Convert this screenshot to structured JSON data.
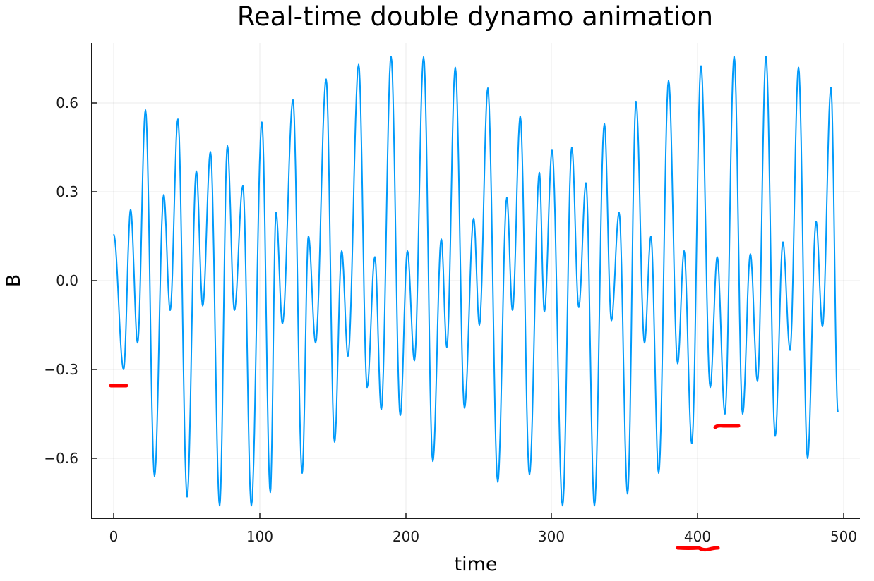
{
  "chart_data": {
    "type": "line",
    "title": "Real-time double dynamo animation",
    "xlabel": "time",
    "ylabel": "B",
    "xlim": [
      -15,
      510
    ],
    "ylim": [
      -0.8,
      0.8
    ],
    "xticks": [
      0,
      100,
      200,
      300,
      400,
      500
    ],
    "xtick_labels": [
      "0",
      "100",
      "200",
      "300",
      "400",
      "500"
    ],
    "yticks": [
      0.6,
      0.3,
      0.0,
      -0.3,
      -0.6
    ],
    "ytick_labels": [
      "0.6",
      "0.3",
      "0.0",
      "−0.3",
      "−0.6"
    ],
    "grid": true,
    "legend": "none",
    "series": [
      {
        "name": "B",
        "color": "#009AFA",
        "note": "local extrema (time, B) of an oscillating signal; curve interpolated between them",
        "extrema": [
          [
            0,
            0.157
          ],
          [
            6.8,
            -0.3
          ],
          [
            11.6,
            0.24
          ],
          [
            16.4,
            -0.21
          ],
          [
            21.8,
            0.576
          ],
          [
            28.0,
            -0.66
          ],
          [
            34.3,
            0.29
          ],
          [
            38.7,
            -0.1
          ],
          [
            44.0,
            0.545
          ],
          [
            50.3,
            -0.73
          ],
          [
            56.6,
            0.37
          ],
          [
            61.0,
            -0.085
          ],
          [
            66.3,
            0.435
          ],
          [
            72.6,
            -0.76
          ],
          [
            77.9,
            0.455
          ],
          [
            82.7,
            -0.1
          ],
          [
            88.5,
            0.32
          ],
          [
            94.3,
            -0.76
          ],
          [
            101.5,
            0.535
          ],
          [
            107.3,
            -0.715
          ],
          [
            111.2,
            0.23
          ],
          [
            115.6,
            -0.145
          ],
          [
            122.8,
            0.61
          ],
          [
            129.1,
            -0.65
          ],
          [
            133.4,
            0.15
          ],
          [
            138.3,
            -0.21
          ],
          [
            145.5,
            0.68
          ],
          [
            151.3,
            -0.545
          ],
          [
            156.2,
            0.1
          ],
          [
            160.5,
            -0.255
          ],
          [
            167.8,
            0.73
          ],
          [
            173.6,
            -0.36
          ],
          [
            178.9,
            0.08
          ],
          [
            183.3,
            -0.435
          ],
          [
            190.0,
            0.757
          ],
          [
            196.3,
            -0.455
          ],
          [
            201.2,
            0.1
          ],
          [
            206.0,
            -0.27
          ],
          [
            212.3,
            0.755
          ],
          [
            218.6,
            -0.61
          ],
          [
            224.4,
            0.14
          ],
          [
            228.2,
            -0.225
          ],
          [
            234.0,
            0.72
          ],
          [
            240.3,
            -0.43
          ],
          [
            246.6,
            0.21
          ],
          [
            250.5,
            -0.15
          ],
          [
            256.3,
            0.65
          ],
          [
            263.1,
            -0.68
          ],
          [
            269.3,
            0.28
          ],
          [
            273.2,
            -0.1
          ],
          [
            278.5,
            0.555
          ],
          [
            284.8,
            -0.655
          ],
          [
            291.6,
            0.365
          ],
          [
            295.0,
            -0.105
          ],
          [
            300.3,
            0.44
          ],
          [
            307.5,
            -0.76
          ],
          [
            313.8,
            0.45
          ],
          [
            318.6,
            -0.09
          ],
          [
            323.5,
            0.33
          ],
          [
            329.3,
            -0.76
          ],
          [
            336.1,
            0.53
          ],
          [
            340.9,
            -0.135
          ],
          [
            346.2,
            0.23
          ],
          [
            352.0,
            -0.72
          ],
          [
            357.8,
            0.605
          ],
          [
            363.6,
            -0.21
          ],
          [
            368.0,
            0.15
          ],
          [
            373.3,
            -0.65
          ],
          [
            380.1,
            0.675
          ],
          [
            386.3,
            -0.28
          ],
          [
            390.7,
            0.1
          ],
          [
            396.0,
            -0.55
          ],
          [
            402.3,
            0.725
          ],
          [
            408.6,
            -0.36
          ],
          [
            413.4,
            0.08
          ],
          [
            418.7,
            -0.45
          ],
          [
            425.0,
            0.757
          ],
          [
            430.8,
            -0.45
          ],
          [
            436.1,
            0.09
          ],
          [
            441.0,
            -0.34
          ],
          [
            446.8,
            0.757
          ],
          [
            453.1,
            -0.525
          ],
          [
            458.4,
            0.13
          ],
          [
            463.3,
            -0.235
          ],
          [
            469.1,
            0.72
          ],
          [
            475.3,
            -0.6
          ],
          [
            481.1,
            0.2
          ],
          [
            485.5,
            -0.155
          ],
          [
            491.3,
            0.652
          ],
          [
            496.1,
            -0.445
          ]
        ]
      }
    ],
    "annotations": [
      {
        "type": "red-underline-mark",
        "color": "#FF0000",
        "near": "B = -0.35 at time ~0-10"
      },
      {
        "type": "red-underline-mark",
        "color": "#FF0000",
        "near": "B = -0.49 at time ~412-428"
      },
      {
        "type": "red-underline-mark",
        "color": "#FF0000",
        "near": "under x tick label 400"
      }
    ]
  },
  "plot": {
    "title": "Real-time double dynamo animation",
    "xlabel": "time",
    "ylabel": "B",
    "xtick_labels": [
      "0",
      "100",
      "200",
      "300",
      "400",
      "500"
    ],
    "ytick_labels": [
      "0.6",
      "0.3",
      "0.0",
      "−0.3",
      "−0.6"
    ]
  },
  "colors": {
    "series": "#009AFA",
    "annotation": "#FF0000",
    "axis": "#1a1a1a",
    "background": "#ffffff"
  }
}
